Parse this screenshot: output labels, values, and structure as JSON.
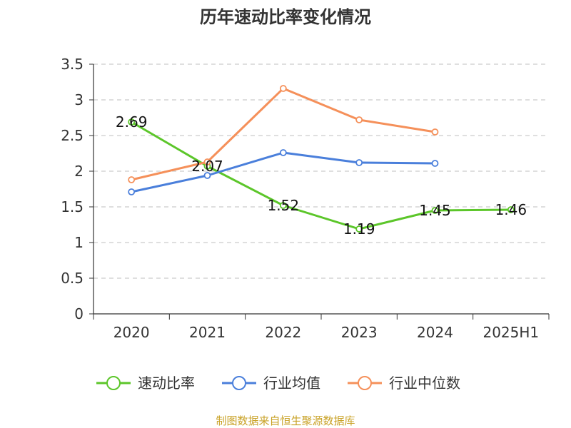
{
  "chart_data": {
    "type": "line",
    "title": "历年速动比率变化情况",
    "categories": [
      "2020",
      "2021",
      "2022",
      "2023",
      "2024",
      "2025H1"
    ],
    "ylim": [
      0,
      3.5
    ],
    "yticks": [
      "0",
      "0.5",
      "1",
      "1.5",
      "2",
      "2.5",
      "3",
      "3.5"
    ],
    "grid": true,
    "legend_position": "bottom",
    "series": [
      {
        "name": "速动比率",
        "color": "#5cc62a",
        "values": [
          2.69,
          2.07,
          1.52,
          1.19,
          1.45,
          1.46
        ],
        "labels": [
          "2.69",
          "2.07",
          "1.52",
          "1.19",
          "1.45",
          "1.46"
        ]
      },
      {
        "name": "行业均值",
        "color": "#4a7fdb",
        "values": [
          1.71,
          1.94,
          2.26,
          2.12,
          2.11,
          null
        ]
      },
      {
        "name": "行业中位数",
        "color": "#f5905a",
        "values": [
          1.88,
          2.13,
          3.16,
          2.72,
          2.55,
          null
        ]
      }
    ]
  },
  "source": "制图数据来自恒生聚源数据库"
}
